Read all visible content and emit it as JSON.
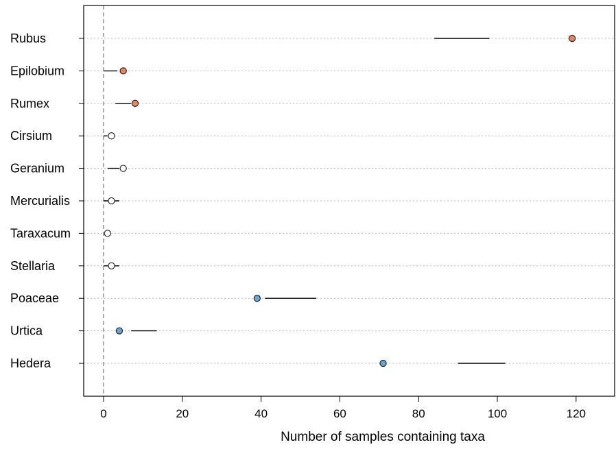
{
  "chart_data": {
    "type": "dot",
    "title": "",
    "xlabel": "Number of samples containing taxa",
    "ylabel": "",
    "xlim": [
      -5,
      130
    ],
    "xticks": [
      0,
      20,
      40,
      60,
      80,
      100,
      120
    ],
    "grid": "horizontal dotted",
    "reference_line_x": 0,
    "categories": [
      "Rubus",
      "Epilobium",
      "Rumex",
      "Cirsium",
      "Geranium",
      "Mercurialis",
      "Taraxacum",
      "Stellaria",
      "Poaceae",
      "Urtica",
      "Hedera"
    ],
    "points": [
      {
        "taxon": "Rubus",
        "value": 119,
        "interval": [
          84,
          98
        ],
        "group": "orange"
      },
      {
        "taxon": "Epilobium",
        "value": 5,
        "interval": [
          0,
          3.5
        ],
        "group": "orange"
      },
      {
        "taxon": "Rumex",
        "value": 8,
        "interval": [
          3,
          7
        ],
        "group": "orange"
      },
      {
        "taxon": "Cirsium",
        "value": 2,
        "interval": [
          0,
          1
        ],
        "group": "white"
      },
      {
        "taxon": "Geranium",
        "value": 5,
        "interval": [
          1,
          4
        ],
        "group": "white"
      },
      {
        "taxon": "Mercurialis",
        "value": 2,
        "interval": [
          0,
          4
        ],
        "group": "white"
      },
      {
        "taxon": "Taraxacum",
        "value": 1,
        "interval": [
          0,
          0
        ],
        "group": "white"
      },
      {
        "taxon": "Stellaria",
        "value": 2,
        "interval": [
          0,
          4
        ],
        "group": "white"
      },
      {
        "taxon": "Poaceae",
        "value": 39,
        "interval": [
          41,
          54
        ],
        "group": "blue"
      },
      {
        "taxon": "Urtica",
        "value": 4,
        "interval": [
          7,
          13.5
        ],
        "group": "blue"
      },
      {
        "taxon": "Hedera",
        "value": 71,
        "interval": [
          90,
          102
        ],
        "group": "blue"
      }
    ]
  },
  "colors": {
    "orange": "#e8845f",
    "white": "#ffffff",
    "blue": "#6aa4d2",
    "grid": "#b8b8b8",
    "refline": "#808080",
    "frame": "#000000"
  }
}
